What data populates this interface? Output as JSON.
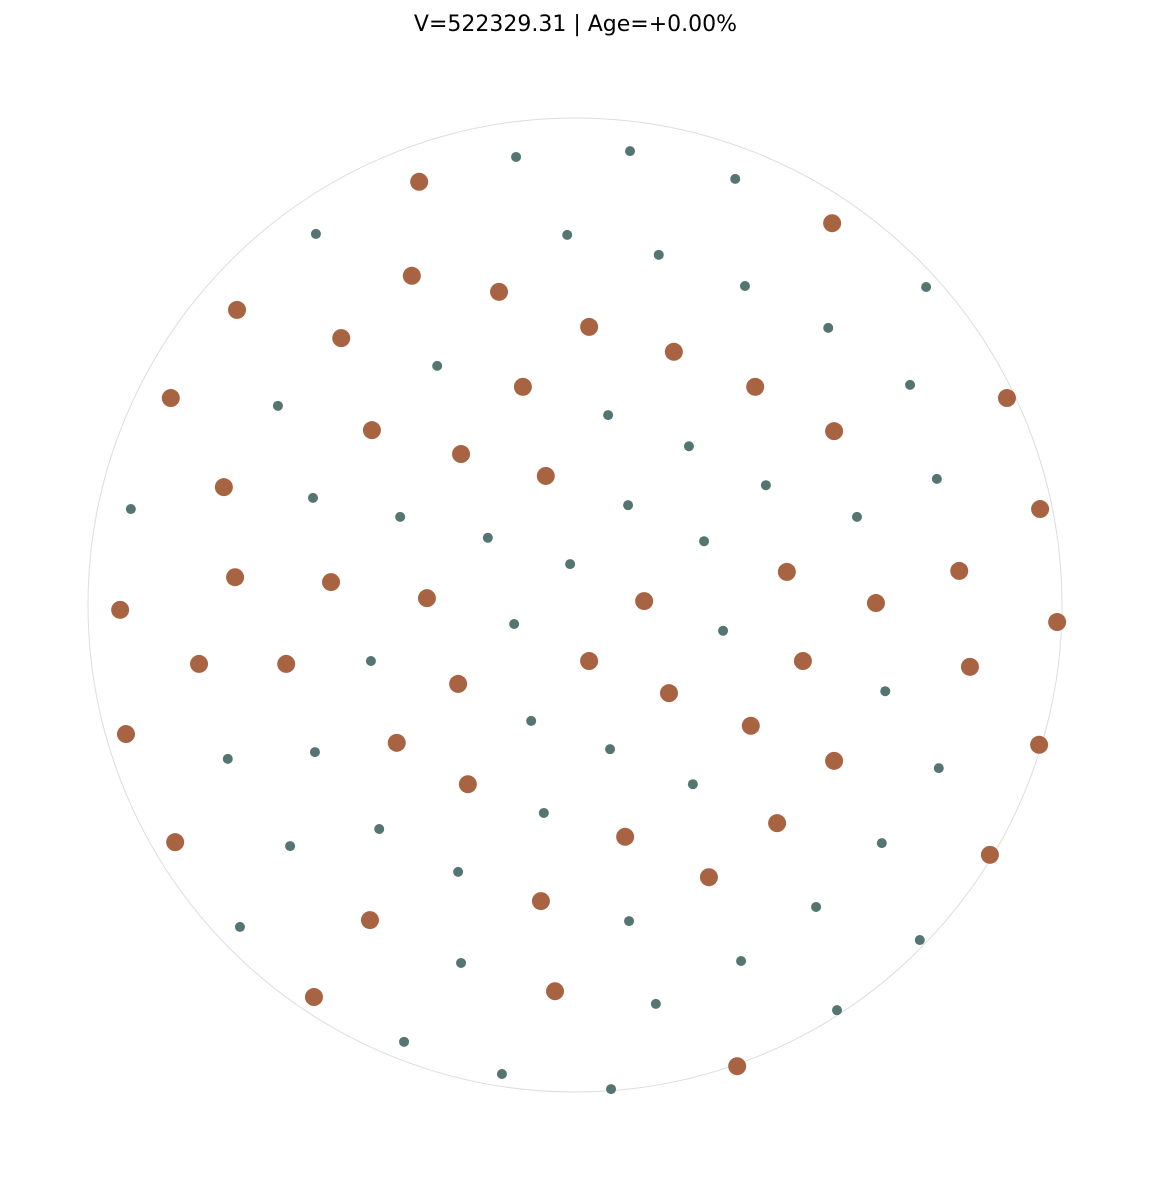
{
  "chart_data": {
    "type": "scatter",
    "title": "V=522329.31 | Age=+0.00%",
    "xlim": [
      -1,
      1
    ],
    "ylim": [
      -1,
      1
    ],
    "boundary": "unit circle",
    "grid": false,
    "axes_visible": false,
    "colors": {
      "large": "#a86442",
      "small": "#557572",
      "boundary": "#dddddd"
    },
    "series": [
      {
        "marker": "large",
        "points": [
          [
            -0.32,
            0.869
          ],
          [
            0.528,
            0.784
          ],
          [
            -0.335,
            0.676
          ],
          [
            -0.156,
            0.643
          ],
          [
            -0.694,
            0.606
          ],
          [
            -0.48,
            0.548
          ],
          [
            0.029,
            0.571
          ],
          [
            0.203,
            0.52
          ],
          [
            0.37,
            0.448
          ],
          [
            -0.107,
            0.448
          ],
          [
            -0.83,
            0.425
          ],
          [
            0.887,
            0.425
          ],
          [
            -0.417,
            0.359
          ],
          [
            0.532,
            0.357
          ],
          [
            -0.234,
            0.31
          ],
          [
            -0.06,
            0.265
          ],
          [
            -0.721,
            0.242
          ],
          [
            0.955,
            0.197
          ],
          [
            -0.698,
            0.057
          ],
          [
            -0.501,
            0.047
          ],
          [
            0.435,
            0.068
          ],
          [
            0.789,
            0.07
          ],
          [
            -0.304,
            0.014
          ],
          [
            0.142,
            0.008
          ],
          [
            0.618,
            0.004
          ],
          [
            -0.934,
            -0.01
          ],
          [
            0.99,
            -0.035
          ],
          [
            -0.772,
            -0.121
          ],
          [
            -0.593,
            -0.121
          ],
          [
            0.029,
            -0.115
          ],
          [
            0.468,
            -0.115
          ],
          [
            0.811,
            -0.127
          ],
          [
            -0.24,
            -0.162
          ],
          [
            0.193,
            -0.181
          ],
          [
            0.361,
            -0.248
          ],
          [
            -0.922,
            -0.265
          ],
          [
            -0.366,
            -0.283
          ],
          [
            0.953,
            -0.287
          ],
          [
            0.532,
            -0.32
          ],
          [
            -0.22,
            -0.368
          ],
          [
            0.415,
            -0.448
          ],
          [
            0.103,
            -0.476
          ],
          [
            -0.821,
            -0.487
          ],
          [
            0.852,
            -0.513
          ],
          [
            0.275,
            -0.559
          ],
          [
            -0.07,
            -0.608
          ],
          [
            -0.421,
            -0.647
          ],
          [
            -0.536,
            -0.805
          ],
          [
            -0.041,
            -0.793
          ],
          [
            0.333,
            -0.947
          ]
        ]
      },
      {
        "marker": "small",
        "points": [
          [
            -0.121,
            0.92
          ],
          [
            0.113,
            0.932
          ],
          [
            0.329,
            0.875
          ],
          [
            -0.532,
            0.762
          ],
          [
            -0.016,
            0.76
          ],
          [
            0.172,
            0.719
          ],
          [
            0.349,
            0.655
          ],
          [
            0.721,
            0.653
          ],
          [
            0.52,
            0.569
          ],
          [
            -0.283,
            0.491
          ],
          [
            0.688,
            0.452
          ],
          [
            -0.61,
            0.409
          ],
          [
            0.068,
            0.39
          ],
          [
            0.234,
            0.326
          ],
          [
            0.392,
            0.246
          ],
          [
            0.743,
            0.259
          ],
          [
            -0.538,
            0.22
          ],
          [
            0.109,
            0.205
          ],
          [
            -0.912,
            0.197
          ],
          [
            -0.359,
            0.181
          ],
          [
            0.579,
            0.181
          ],
          [
            -0.179,
            0.138
          ],
          [
            0.265,
            0.131
          ],
          [
            -0.01,
            0.084
          ],
          [
            -0.125,
            -0.039
          ],
          [
            0.304,
            -0.053
          ],
          [
            -0.419,
            -0.115
          ],
          [
            0.637,
            -0.177
          ],
          [
            -0.09,
            -0.238
          ],
          [
            0.072,
            -0.296
          ],
          [
            -0.713,
            -0.316
          ],
          [
            -0.534,
            -0.302
          ],
          [
            0.747,
            -0.335
          ],
          [
            0.242,
            -0.368
          ],
          [
            -0.064,
            -0.427
          ],
          [
            -0.402,
            -0.46
          ],
          [
            0.63,
            -0.489
          ],
          [
            -0.585,
            -0.495
          ],
          [
            -0.24,
            -0.548
          ],
          [
            0.495,
            -0.62
          ],
          [
            0.111,
            -0.649
          ],
          [
            -0.688,
            -0.661
          ],
          [
            0.708,
            -0.688
          ],
          [
            0.341,
            -0.731
          ],
          [
            -0.234,
            -0.735
          ],
          [
            0.166,
            -0.819
          ],
          [
            0.538,
            -0.832
          ],
          [
            -0.351,
            -0.897
          ],
          [
            -0.15,
            -0.963
          ],
          [
            0.074,
            -0.994
          ]
        ]
      }
    ]
  }
}
